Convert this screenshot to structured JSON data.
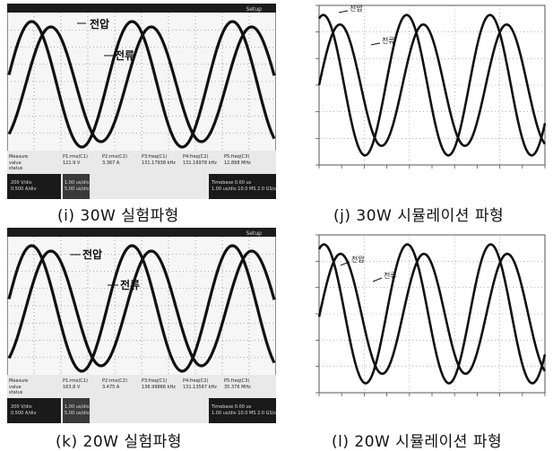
{
  "panels": [
    {
      "id": "i",
      "kind": "experiment",
      "caption": "(i) 30W 실험파형",
      "top_bar_label": "Setup",
      "voltage_label": "전압",
      "current_label": "전류",
      "measure_headers": [
        "Measure",
        "P1:rms(C1)",
        "P2:rms(C2)",
        "P3:freq(C1)",
        "P4:freq(C2)",
        "P5:freq(C3)"
      ],
      "measure_values": [
        "value",
        "121.9 V",
        "3.367 A",
        "131.17938 kHz",
        "131.16978 kHz",
        "12.898 MHz"
      ],
      "status_row": "status",
      "footer_left": "200 V/div\n0.500 A/div",
      "footer_mid": "1.00 us/div\n5.00 us/div",
      "footer_right": "Timebase 0.00 us\n1.00 us/div  10.0 MS  2.0 GS/s"
    },
    {
      "id": "j",
      "kind": "simulation",
      "caption": "(j) 30W 시뮬레이션 파형",
      "voltage_label": "전압",
      "current_label": "전류"
    },
    {
      "id": "k",
      "kind": "experiment",
      "caption": "(k) 20W 실험파형",
      "top_bar_label": "Setup",
      "voltage_label": "전압",
      "current_label": "전류",
      "measure_headers": [
        "Measure",
        "P1:rms(C1)",
        "P2:rms(C2)",
        "P3:freq(C1)",
        "P4:freq(C2)",
        "P5:freq(C3)"
      ],
      "measure_values": [
        "value",
        "163.8 V",
        "3.475 A",
        "136.99866 kHz",
        "131.13567 kHz",
        "35.376 MHz"
      ],
      "status_row": "status",
      "footer_left": "200 V/div\n0.500 A/div",
      "footer_mid": "1.00 us/div\n5.00 us/div",
      "footer_right": "Timebase 0.00 us\n1.00 us/div  10.0 MS  2.0 GS/s"
    },
    {
      "id": "l",
      "kind": "simulation",
      "caption": "(l) 20W 시뮬레이션 파형",
      "voltage_label": "전압",
      "current_label": "전류"
    }
  ],
  "colors": {
    "waveform": "#111111",
    "scope_bg": "#f4f4f4",
    "scope_bar": "#1a1a1a",
    "grid": "#777777"
  }
}
